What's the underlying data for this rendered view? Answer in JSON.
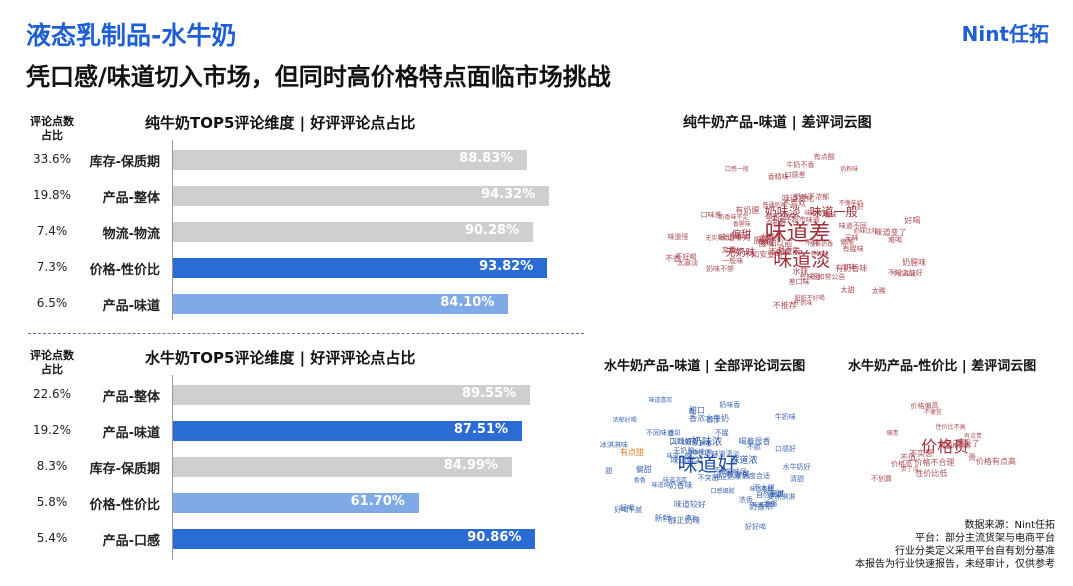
{
  "header": {
    "title": "液态乳制品-水牛奶",
    "subtitle": "凭口感/味道切入市场，但同时高价格特点面临市场挑战",
    "logo": "Nint任拓"
  },
  "chart_data": [
    {
      "type": "bar",
      "title": "纯牛奶TOP5评论维度 | 好评评论点占比",
      "column_header": "评论点数\n占比",
      "categories": [
        "库存-保质期",
        "产品-整体",
        "物流-物流",
        "价格-性价比",
        "产品-味道"
      ],
      "shares": [
        "33.6%",
        "19.8%",
        "7.4%",
        "7.3%",
        "6.5%"
      ],
      "values": [
        88.83,
        94.32,
        90.28,
        93.82,
        84.1
      ],
      "value_labels": [
        "88.83%",
        "94.32%",
        "90.28%",
        "93.82%",
        "84.10%"
      ],
      "bar_colors": [
        "#cfcfcf",
        "#cfcfcf",
        "#cfcfcf",
        "#2b6cd4",
        "#7faae6"
      ],
      "xlim": [
        0,
        100
      ]
    },
    {
      "type": "bar",
      "title": "水牛奶TOP5评论维度 | 好评评论点占比",
      "column_header": "评论点数\n占比",
      "categories": [
        "产品-整体",
        "产品-味道",
        "库存-保质期",
        "价格-性价比",
        "产品-口感"
      ],
      "shares": [
        "22.6%",
        "19.2%",
        "8.3%",
        "5.8%",
        "5.4%"
      ],
      "values": [
        89.55,
        87.51,
        84.99,
        61.7,
        90.86
      ],
      "value_labels": [
        "89.55%",
        "87.51%",
        "84.99%",
        "61.70%",
        "90.86%"
      ],
      "bar_colors": [
        "#cfcfcf",
        "#2b6cd4",
        "#cfcfcf",
        "#7faae6",
        "#2b6cd4"
      ],
      "xlim": [
        0,
        100
      ]
    }
  ],
  "clouds": {
    "pure_taste": {
      "title": "纯牛奶产品-味道 | 差评词云图",
      "color": "#a0303a",
      "words": [
        "无实体店好喝",
        "差口味",
        "不知之前好",
        "不知安要写",
        "不同于超市味道",
        "脏脏不好喝",
        "奶香味不足",
        "奶腥味",
        "有奶香味",
        "不如常公告",
        "普通奶味",
        "奶味比较",
        "香腥味",
        "奶味不浓郁",
        "牛奶味淡",
        "不像牛奶",
        "有奶腥",
        "口味不适合",
        "没了",
        "奶味不够",
        "味道不同",
        "味道不对",
        "变质",
        "牛奶味",
        "不推荐",
        "好喝",
        "口感差",
        "奶味淡",
        "味道一般",
        "偏酸",
        "有味道",
        "不喜欢",
        "偏甜",
        "味道差",
        "无味",
        "味道淡",
        "酸味",
        "不好喝",
        "腥味",
        "怪味",
        "无奶味",
        "太甜",
        "口感一般",
        "味道奇怪",
        "不纯",
        "奶粉味",
        "一般般",
        "太淡",
        "水味",
        "有异味",
        "不新鲜",
        "淡味",
        "难喝",
        "味道变化",
        "香精味",
        "不如之前",
        "没有奶香",
        "奶香淡",
        "偏淡",
        "不好",
        "太稀",
        "味道怪",
        "不香",
        "一般味",
        "有点酸",
        "味道变了",
        "不如以前",
        "口味差",
        "牛奶不香",
        "太寡淡",
        "有腥味"
      ]
    },
    "buffalo_taste": {
      "title": "水牛奶产品-味道 | 全部评论词云图",
      "color": "#1f4fa8",
      "accent": "#e07a1a",
      "words": [
        "香浓水牛奶",
        "味道鲜美",
        "不突出",
        "醇正奶味",
        "集冰淇淋",
        "甜度合适",
        "浓郁好喝",
        "纯正奶味",
        "奶味鲜美",
        "喝着很香",
        "不腻",
        "不同味道",
        "味道浓厚",
        "味道喜欢",
        "味道清淡",
        "好喝",
        "不同口感",
        "细腻",
        "味道香醇",
        "奶味浓",
        "浓郁",
        "冰淇淋味",
        "不腥",
        "味道较好",
        "味道好",
        "有点甜",
        "甜",
        "香",
        "味道浓",
        "偏甜",
        "奶香浓",
        "味道正宗",
        "牛奶味",
        "奶味香",
        "清淡",
        "鲜美",
        "香甜",
        "好喝不腻",
        "奶香味",
        "水牛奶好",
        "甜口",
        "口感好",
        "不错",
        "味道一般",
        "醇厚",
        "浓香",
        "自然",
        "奶味足",
        "香香",
        "入口顺滑",
        "很甜",
        "口感细腻",
        "味道纯",
        "不太甜",
        "香味浓",
        "口味好",
        "新鲜",
        "好好喝",
        "无奶腥",
        "清甜"
      ]
    },
    "buffalo_price": {
      "title": "水牛奶产品-性价比 | 差评词云图",
      "color": "#a0303a",
      "words": [
        "价格贵",
        "不划算",
        "太贵了",
        "价格偏高",
        "价格太高",
        "性价比低",
        "有点贵",
        "不值",
        "贵",
        "价格高",
        "不便宜",
        "偏贵",
        "价格不合理",
        "贵了点",
        "价格有点高",
        "涨价了",
        "不实惠",
        "性价比不高"
      ]
    }
  },
  "source": {
    "lines": [
      "数据来源：Nint任拓",
      "平台：部分主流货架与电商平台",
      "行业分类定义采用平台自有划分基准",
      "本报告为行业快速报告，未经审计，仅供参考"
    ]
  }
}
